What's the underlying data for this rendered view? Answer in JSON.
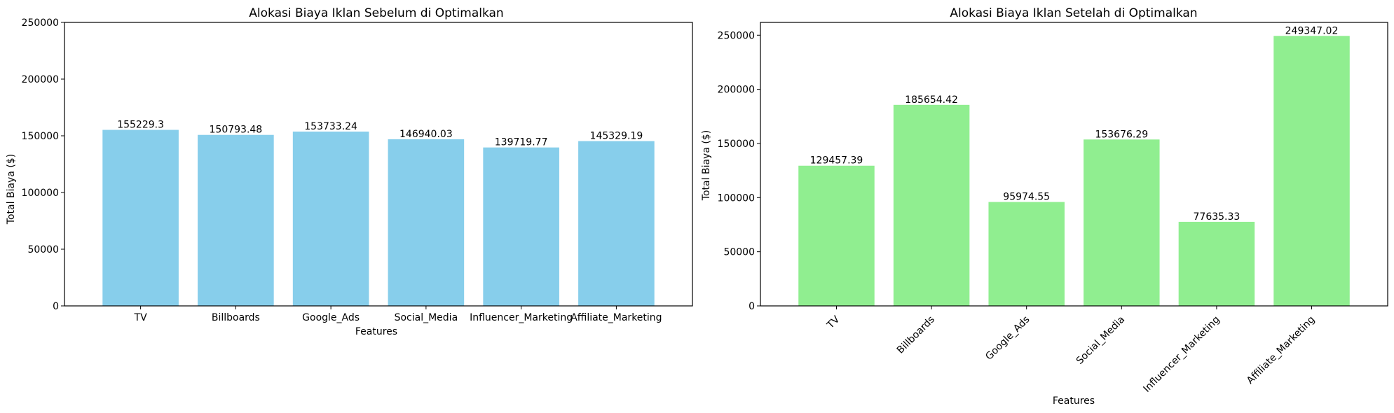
{
  "chart_data": [
    {
      "type": "bar",
      "title": "Alokasi Biaya Iklan Sebelum di Optimalkan",
      "xlabel": "Features",
      "ylabel": "Total Biaya ($)",
      "categories": [
        "TV",
        "Billboards",
        "Google_Ads",
        "Social_Media",
        "Influencer_Marketing",
        "Affiliate_Marketing"
      ],
      "values": [
        155229.3,
        150793.48,
        153733.24,
        146940.03,
        139719.77,
        145329.19
      ],
      "value_labels": [
        "155229.3",
        "150793.48",
        "153733.24",
        "146940.03",
        "139719.77",
        "145329.19"
      ],
      "ylim": [
        0,
        250000
      ],
      "yticks": [
        0,
        50000,
        100000,
        150000,
        200000,
        250000
      ],
      "ytick_labels": [
        "0",
        "50000",
        "100000",
        "150000",
        "200000",
        "250000"
      ],
      "color": "#87CEEB",
      "xtick_rotation": 0,
      "grid": false
    },
    {
      "type": "bar",
      "title": "Alokasi Biaya Iklan Setelah di Optimalkan",
      "xlabel": "Features",
      "ylabel": "Total Biaya ($)",
      "categories": [
        "TV",
        "Billboards",
        "Google_Ads",
        "Social_Media",
        "Influencer_Marketing",
        "Affiliate_Marketing"
      ],
      "values": [
        129457.39,
        185654.42,
        95974.55,
        153676.29,
        77635.33,
        249347.02
      ],
      "value_labels": [
        "129457.39",
        "185654.42",
        "95974.55",
        "153676.29",
        "77635.33",
        "249347.02"
      ],
      "ylim": [
        0,
        261814.37
      ],
      "yticks": [
        0,
        50000,
        100000,
        150000,
        200000,
        250000
      ],
      "ytick_labels": [
        "0",
        "50000",
        "100000",
        "150000",
        "200000",
        "250000"
      ],
      "color": "#90EE90",
      "xtick_rotation": -45,
      "grid": false
    }
  ]
}
